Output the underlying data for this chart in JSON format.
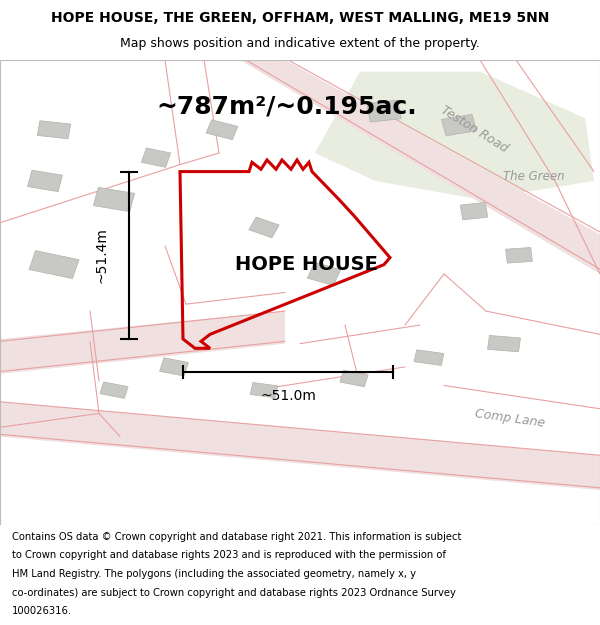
{
  "title_line1": "HOPE HOUSE, THE GREEN, OFFHAM, WEST MALLING, ME19 5NN",
  "title_line2": "Map shows position and indicative extent of the property.",
  "area_text": "~787m²/~0.195ac.",
  "property_label": "HOPE HOUSE",
  "dim_vertical": "~51.4m",
  "dim_horizontal": "~51.0m",
  "road_label_1": "Teston Road",
  "road_label_2": "The Green",
  "road_label_3": "Comp Lane",
  "footer_lines": [
    "Contains OS data © Crown copyright and database right 2021. This information is subject",
    "to Crown copyright and database rights 2023 and is reproduced with the permission of",
    "HM Land Registry. The polygons (including the associated geometry, namely x, y",
    "co-ordinates) are subject to Crown copyright and database rights 2023 Ordnance Survey",
    "100026316."
  ],
  "map_bg": "#f7f5f2",
  "road_stroke": "#e8a0a0",
  "road_fill": "#f0e0e0",
  "green_fill": "#e8ede0",
  "building_fill": "#c8c8c4",
  "building_edge": "#b0b0ac",
  "property_stroke": "#cc0000",
  "title_fontsize": 10,
  "subtitle_fontsize": 9,
  "area_fontsize": 18,
  "label_fontsize": 14,
  "dim_fontsize": 10,
  "road_label_fontsize": 9,
  "footer_fontsize": 7.2
}
